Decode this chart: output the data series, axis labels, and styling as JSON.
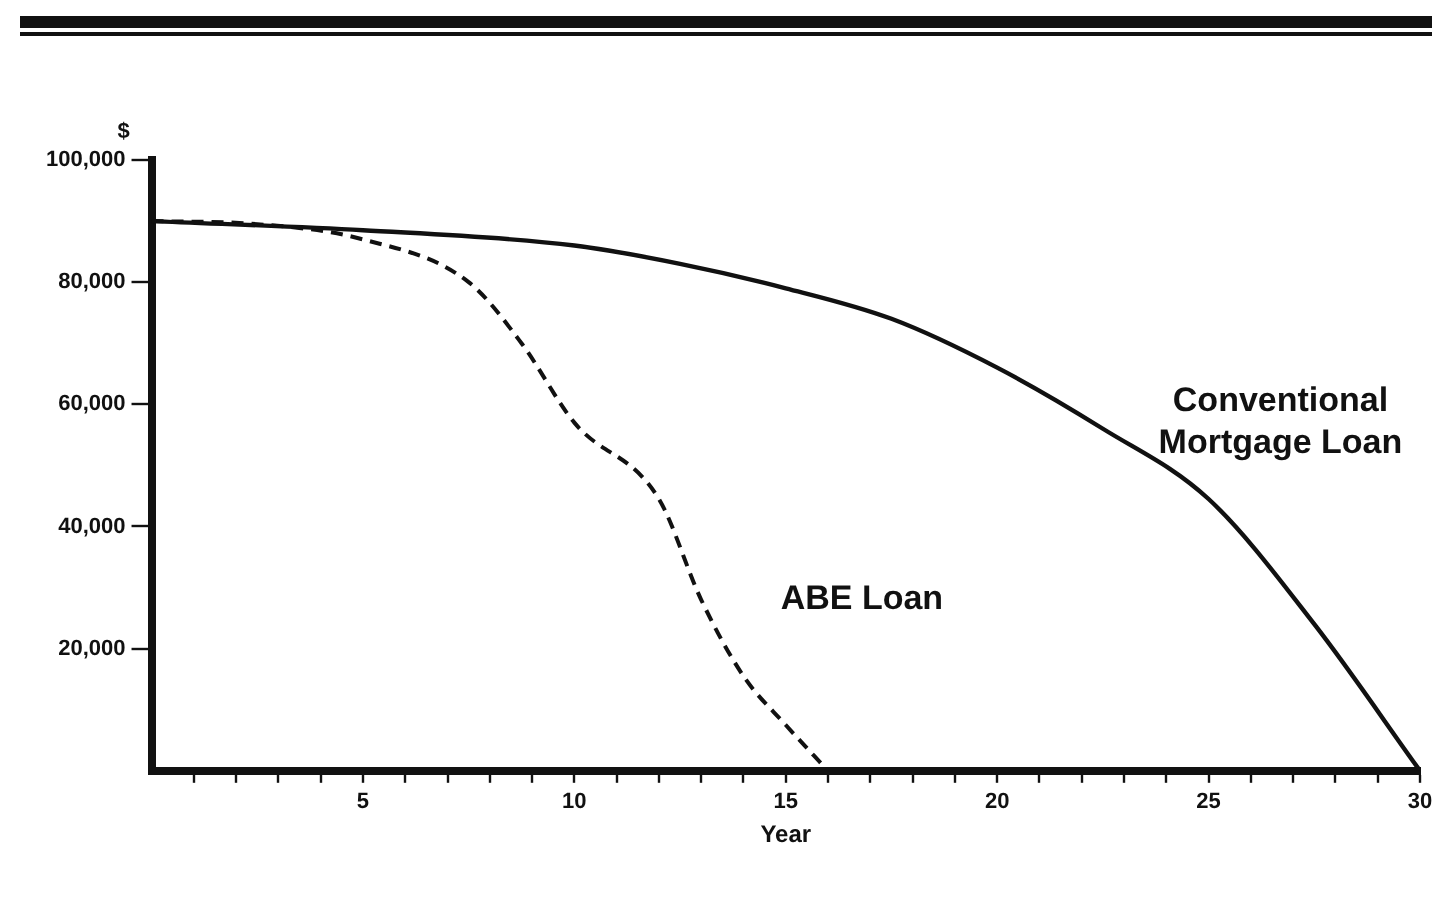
{
  "chart_data": {
    "type": "line",
    "xlabel": "Year",
    "ylabel": "$",
    "xlim": [
      0,
      30
    ],
    "ylim": [
      0,
      100000
    ],
    "xticks": [
      {
        "value": 1,
        "label": null
      },
      {
        "value": 2,
        "label": null
      },
      {
        "value": 3,
        "label": null
      },
      {
        "value": 4,
        "label": null
      },
      5,
      {
        "value": 6,
        "label": null
      },
      {
        "value": 7,
        "label": null
      },
      {
        "value": 8,
        "label": null
      },
      {
        "value": 9,
        "label": null
      },
      10,
      {
        "value": 11,
        "label": null
      },
      {
        "value": 12,
        "label": null
      },
      {
        "value": 13,
        "label": null
      },
      {
        "value": 14,
        "label": null
      },
      15,
      {
        "value": 16,
        "label": null
      },
      {
        "value": 17,
        "label": null
      },
      {
        "value": 18,
        "label": null
      },
      {
        "value": 19,
        "label": null
      },
      20,
      {
        "value": 21,
        "label": null
      },
      {
        "value": 22,
        "label": null
      },
      {
        "value": 23,
        "label": null
      },
      {
        "value": 24,
        "label": null
      },
      25,
      {
        "value": 26,
        "label": null
      },
      {
        "value": 27,
        "label": null
      },
      {
        "value": 28,
        "label": null
      },
      {
        "value": 29,
        "label": null
      },
      30
    ],
    "yticks": [
      {
        "value": 20000,
        "label": "20,000"
      },
      {
        "value": 40000,
        "label": "40,000"
      },
      {
        "value": 60000,
        "label": "60,000"
      },
      {
        "value": 80000,
        "label": "80,000"
      },
      {
        "value": 100000,
        "label": "100,000"
      }
    ],
    "grid": false,
    "legend": false,
    "marker": "none",
    "series": [
      {
        "name": "Conventional\nMortgage Loan",
        "color": "#111111",
        "line_style": "solid",
        "x": [
          0,
          5,
          10,
          12.5,
          15,
          17.5,
          20,
          22.5,
          25,
          27.5,
          30
        ],
        "values": [
          90000,
          88500,
          86000,
          83000,
          79000,
          74000,
          66000,
          56000,
          44500,
          24000,
          0
        ]
      },
      {
        "name": "ABE Loan",
        "color": "#111111",
        "line_style": "dashed",
        "x": [
          0,
          2.5,
          5,
          7.5,
          8.75,
          10,
          12,
          13,
          14,
          15,
          16
        ],
        "values": [
          90000,
          89500,
          87000,
          80000,
          70000,
          57000,
          44500,
          28000,
          15500,
          7500,
          0
        ]
      }
    ]
  }
}
